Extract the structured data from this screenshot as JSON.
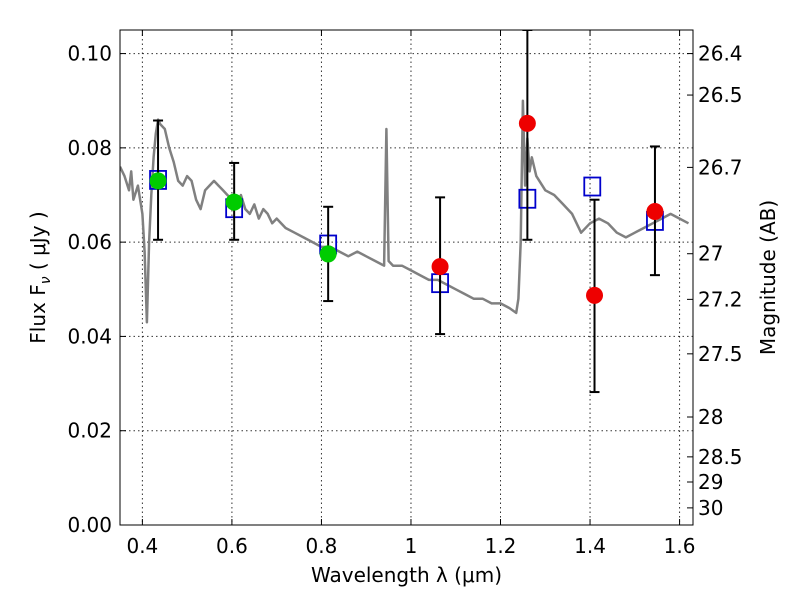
{
  "chart_data": {
    "type": "scatter",
    "xlabel": "Wavelength  λ (μm)",
    "ylabel": "Flux  F",
    "ylabel_sub": "ν",
    "ylabel_unit": " ( μJy )",
    "y2label": "Magnitude (AB)",
    "xlim": [
      0.35,
      1.63
    ],
    "ylim": [
      0.0,
      0.105
    ],
    "grid": true,
    "x_ticks": [
      0.4,
      0.6,
      0.8,
      1.0,
      1.2,
      1.4,
      1.6
    ],
    "x_tick_labels": [
      "0.4",
      "0.6",
      "0.8",
      "1",
      "1.2",
      "1.4",
      "1.6"
    ],
    "y_ticks": [
      0.0,
      0.02,
      0.04,
      0.06,
      0.08,
      0.1
    ],
    "y_tick_labels": [
      "0.00",
      "0.02",
      "0.04",
      "0.06",
      "0.08",
      "0.10"
    ],
    "mag_ticks": [
      26.4,
      26.5,
      26.7,
      27,
      27.2,
      27.5,
      28,
      28.5,
      29,
      30
    ],
    "mag_tick_labels": [
      "26.4",
      "26.5",
      "26.7",
      "27",
      "27.2",
      "27.5",
      "28",
      "28.5",
      "29",
      "30"
    ],
    "colors": {
      "spectrum": "#808080",
      "hst_points": "#00cc00",
      "ir_points": "#ee0000",
      "model_squares": "#0000cc",
      "errorbars": "#000000"
    },
    "series": [
      {
        "kind": "spectrum",
        "x": [
          0.35,
          0.36,
          0.37,
          0.375,
          0.38,
          0.39,
          0.4,
          0.405,
          0.41,
          0.415,
          0.42,
          0.425,
          0.43,
          0.435,
          0.44,
          0.45,
          0.46,
          0.47,
          0.48,
          0.49,
          0.5,
          0.51,
          0.52,
          0.53,
          0.54,
          0.55,
          0.56,
          0.57,
          0.58,
          0.59,
          0.6,
          0.61,
          0.62,
          0.63,
          0.64,
          0.65,
          0.66,
          0.67,
          0.68,
          0.69,
          0.7,
          0.72,
          0.74,
          0.76,
          0.78,
          0.8,
          0.82,
          0.84,
          0.86,
          0.88,
          0.9,
          0.92,
          0.94,
          0.945,
          0.95,
          0.96,
          0.98,
          1.0,
          1.02,
          1.04,
          1.06,
          1.08,
          1.1,
          1.12,
          1.14,
          1.16,
          1.18,
          1.2,
          1.22,
          1.235,
          1.24,
          1.245,
          1.25,
          1.255,
          1.26,
          1.265,
          1.27,
          1.28,
          1.3,
          1.32,
          1.34,
          1.36,
          1.38,
          1.4,
          1.42,
          1.44,
          1.46,
          1.48,
          1.5,
          1.52,
          1.54,
          1.56,
          1.58,
          1.6,
          1.62
        ],
        "y": [
          0.076,
          0.074,
          0.071,
          0.075,
          0.069,
          0.072,
          0.066,
          0.058,
          0.043,
          0.06,
          0.07,
          0.078,
          0.083,
          0.086,
          0.085,
          0.084,
          0.08,
          0.077,
          0.073,
          0.072,
          0.074,
          0.073,
          0.069,
          0.067,
          0.071,
          0.072,
          0.073,
          0.072,
          0.071,
          0.07,
          0.069,
          0.068,
          0.07,
          0.067,
          0.066,
          0.068,
          0.065,
          0.067,
          0.066,
          0.064,
          0.065,
          0.063,
          0.062,
          0.061,
          0.06,
          0.059,
          0.059,
          0.058,
          0.057,
          0.058,
          0.057,
          0.056,
          0.055,
          0.084,
          0.056,
          0.055,
          0.055,
          0.054,
          0.053,
          0.052,
          0.052,
          0.051,
          0.05,
          0.049,
          0.048,
          0.048,
          0.047,
          0.047,
          0.046,
          0.045,
          0.048,
          0.06,
          0.09,
          0.072,
          0.082,
          0.075,
          0.078,
          0.074,
          0.071,
          0.07,
          0.068,
          0.066,
          0.062,
          0.064,
          0.065,
          0.064,
          0.062,
          0.061,
          0.062,
          0.063,
          0.064,
          0.065,
          0.066,
          0.065,
          0.064
        ]
      },
      {
        "kind": "photometry",
        "x": [
          0.435,
          0.605,
          0.815
        ],
        "y": [
          0.073,
          0.0685,
          0.0575
        ],
        "yerr_low": [
          0.0605,
          0.0605,
          0.0475
        ],
        "yerr_high": [
          0.0858,
          0.0768,
          0.0675
        ]
      },
      {
        "kind": "photometry-ir",
        "x": [
          1.065,
          1.26,
          1.41,
          1.545
        ],
        "y": [
          0.0548,
          0.0852,
          0.0487,
          0.0665
        ],
        "yerr_low": [
          0.0405,
          0.0605,
          0.0282,
          0.053
        ],
        "yerr_high": [
          0.0695,
          0.105,
          0.069,
          0.0803
        ]
      },
      {
        "kind": "model",
        "x": [
          0.435,
          0.605,
          0.815,
          1.065,
          1.26,
          1.405,
          1.545
        ],
        "y": [
          0.0732,
          0.0672,
          0.0595,
          0.0513,
          0.0692,
          0.0718,
          0.0645
        ]
      }
    ]
  }
}
